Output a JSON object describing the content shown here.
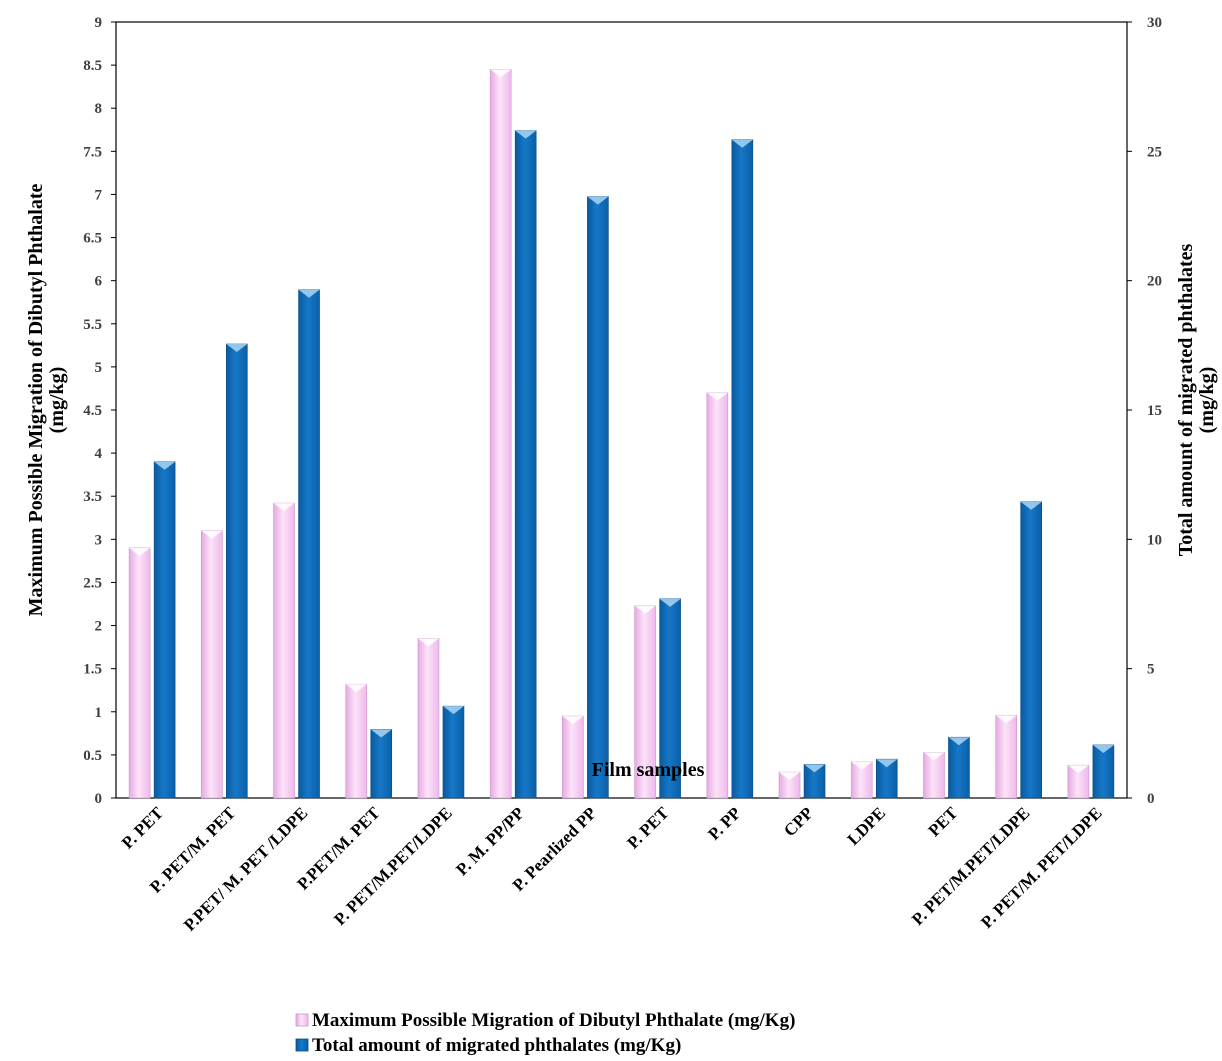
{
  "chart_data": {
    "type": "bar",
    "categories": [
      "P. PET",
      "P. PET/M. PET",
      "P.PET/ M. PET /LDPE",
      "P.PET/M. PET",
      "P. PET/M.PET/LDPE",
      "P. M. PP/PP",
      "P. Pearlized PP",
      "P. PET",
      "P. PP",
      "CPP",
      "LDPE",
      "PET",
      "P. PET/M.PET/LDPE",
      "P. PET/M. PET/LDPE"
    ],
    "series": [
      {
        "name": "Maximum Possible Migration of Dibutyl Phthalate  (mg/Kg)",
        "axis": "left",
        "color": "#f5c8f0",
        "values": [
          2.9,
          3.1,
          3.42,
          1.32,
          1.85,
          8.45,
          0.95,
          2.23,
          4.7,
          0.3,
          0.42,
          0.53,
          0.96,
          0.38
        ]
      },
      {
        "name": "Total amount of migrated phthalates (mg/Kg)",
        "axis": "right",
        "color": "#0f6cbd",
        "values": [
          13.0,
          17.55,
          19.65,
          2.65,
          3.55,
          25.8,
          23.25,
          7.7,
          25.45,
          1.3,
          1.5,
          2.35,
          11.45,
          2.05
        ]
      }
    ],
    "xlabel": "Film samples",
    "ylabel_left": [
      "Maximum Possible Migration of Dibutyl Phthalate",
      "(mg/kg)"
    ],
    "ylabel_right": [
      "Total amount of migrated  phthalates",
      "(mg/kg)"
    ],
    "ylim_left": [
      0,
      9
    ],
    "ylim_right": [
      0,
      30
    ],
    "yticks_left": [
      "0",
      "0.5",
      "1",
      "1.5",
      "2",
      "2.5",
      "3",
      "3.5",
      "4",
      "4.5",
      "5",
      "5.5",
      "6",
      "6.5",
      "7",
      "7.5",
      "8",
      "8.5",
      "9"
    ],
    "yticks_right": [
      "0",
      "5",
      "10",
      "15",
      "20",
      "25",
      "30"
    ],
    "grid": false,
    "legend_position": "bottom"
  }
}
